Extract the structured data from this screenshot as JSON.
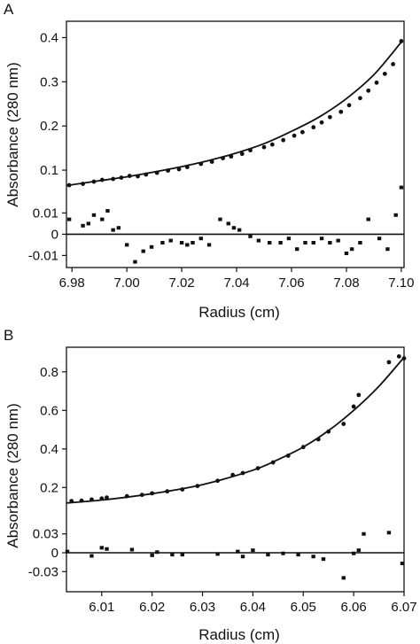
{
  "chart_data": [
    {
      "panel_label": "A",
      "type": "scatter",
      "xlabel": "Radius (cm)",
      "ylabel": "Absorbance (280 nm)",
      "xlim": [
        6.978,
        7.101
      ],
      "x_ticks": [
        "6.98",
        "7.00",
        "7.02",
        "7.04",
        "7.06",
        "7.08",
        "7.10"
      ],
      "upper": {
        "ylim": [
          0.04,
          0.425
        ],
        "y_ticks": [
          "0.1",
          "0.2",
          "0.3",
          "0.4"
        ],
        "fit_line": {
          "x": [
            6.978,
            6.99,
            7.0,
            7.01,
            7.02,
            7.03,
            7.04,
            7.05,
            7.06,
            7.07,
            7.08,
            7.09,
            7.1
          ],
          "y": [
            0.065,
            0.076,
            0.085,
            0.096,
            0.108,
            0.122,
            0.139,
            0.16,
            0.188,
            0.22,
            0.262,
            0.316,
            0.39
          ]
        },
        "points": {
          "x": [
            6.979,
            6.984,
            6.988,
            6.991,
            6.995,
            6.998,
            7.001,
            7.004,
            7.007,
            7.011,
            7.015,
            7.019,
            7.022,
            7.027,
            7.031,
            7.035,
            7.038,
            7.042,
            7.045,
            7.05,
            7.053,
            7.057,
            7.061,
            7.064,
            7.068,
            7.071,
            7.074,
            7.078,
            7.081,
            7.085,
            7.088,
            7.091,
            7.094,
            7.097,
            7.1
          ],
          "y": [
            0.066,
            0.069,
            0.074,
            0.078,
            0.08,
            0.083,
            0.087,
            0.086,
            0.09,
            0.094,
            0.099,
            0.102,
            0.107,
            0.114,
            0.119,
            0.127,
            0.131,
            0.137,
            0.145,
            0.152,
            0.158,
            0.168,
            0.178,
            0.186,
            0.197,
            0.208,
            0.22,
            0.232,
            0.247,
            0.263,
            0.28,
            0.298,
            0.318,
            0.34,
            0.392
          ]
        }
      },
      "residuals": {
        "ylim": [
          -0.014,
          0.016
        ],
        "y_ticks": [
          "0.01",
          "0",
          "-0.01"
        ],
        "points": {
          "x": [
            6.979,
            6.984,
            6.986,
            6.988,
            6.991,
            6.993,
            6.995,
            6.997,
            7.0,
            7.003,
            7.006,
            7.009,
            7.013,
            7.016,
            7.02,
            7.022,
            7.024,
            7.027,
            7.03,
            7.034,
            7.037,
            7.039,
            7.041,
            7.045,
            7.048,
            7.052,
            7.056,
            7.059,
            7.062,
            7.065,
            7.068,
            7.071,
            7.074,
            7.077,
            7.08,
            7.082,
            7.085,
            7.088,
            7.092,
            7.095,
            7.098,
            7.1
          ],
          "y": [
            0.007,
            0.004,
            0.005,
            0.009,
            0.007,
            0.011,
            0.002,
            0.003,
            -0.005,
            -0.013,
            -0.008,
            -0.006,
            -0.004,
            -0.003,
            -0.004,
            -0.005,
            -0.004,
            -0.002,
            -0.005,
            0.007,
            0.005,
            0.003,
            0.002,
            -0.001,
            -0.003,
            -0.004,
            -0.004,
            -0.002,
            -0.007,
            -0.004,
            -0.004,
            -0.002,
            -0.004,
            -0.003,
            -0.009,
            -0.007,
            -0.004,
            0.007,
            -0.002,
            -0.007,
            0.009,
            0.022
          ]
        }
      }
    },
    {
      "panel_label": "B",
      "type": "scatter",
      "xlabel": "Radius (cm)",
      "ylabel": "Absorbance (280 nm)",
      "xlim": [
        6.003,
        6.07
      ],
      "x_ticks": [
        "6.01",
        "6.02",
        "6.03",
        "6.04",
        "6.05",
        "6.06",
        "6.07"
      ],
      "upper": {
        "ylim": [
          0.05,
          0.9
        ],
        "y_ticks": [
          "0.2",
          "0.4",
          "0.6",
          "0.8"
        ],
        "fit_line": {
          "x": [
            6.003,
            6.01,
            6.02,
            6.03,
            6.04,
            6.045,
            6.05,
            6.055,
            6.06,
            6.065,
            6.07
          ],
          "y": [
            0.12,
            0.135,
            0.168,
            0.215,
            0.29,
            0.345,
            0.41,
            0.495,
            0.6,
            0.725,
            0.875
          ]
        },
        "points": {
          "x": [
            6.004,
            6.006,
            6.008,
            6.01,
            6.011,
            6.015,
            6.018,
            6.02,
            6.023,
            6.026,
            6.029,
            6.033,
            6.036,
            6.038,
            6.041,
            6.044,
            6.047,
            6.05,
            6.053,
            6.055,
            6.058,
            6.06,
            6.061,
            6.067,
            6.069,
            6.07
          ],
          "y": [
            0.13,
            0.132,
            0.138,
            0.143,
            0.148,
            0.155,
            0.162,
            0.17,
            0.18,
            0.19,
            0.208,
            0.235,
            0.265,
            0.275,
            0.3,
            0.33,
            0.365,
            0.41,
            0.45,
            0.49,
            0.53,
            0.62,
            0.68,
            0.85,
            0.88,
            0.87
          ]
        }
      },
      "residuals": {
        "ylim": [
          -0.055,
          0.055
        ],
        "y_ticks": [
          "0.03",
          "0",
          "-0.03"
        ],
        "points": {
          "x": [
            6.003,
            6.008,
            6.01,
            6.011,
            6.016,
            6.02,
            6.021,
            6.024,
            6.026,
            6.033,
            6.037,
            6.038,
            6.04,
            6.043,
            6.046,
            6.049,
            6.052,
            6.054,
            6.058,
            6.06,
            6.061,
            6.062,
            6.067,
            6.07
          ],
          "y": [
            0.002,
            -0.005,
            0.008,
            0.006,
            0.005,
            -0.004,
            0.001,
            -0.003,
            -0.003,
            -0.002,
            0.002,
            -0.006,
            0.004,
            -0.003,
            -0.001,
            -0.003,
            -0.006,
            -0.01,
            -0.04,
            -0.001,
            0.004,
            0.03,
            0.032,
            -0.017
          ]
        }
      }
    }
  ]
}
